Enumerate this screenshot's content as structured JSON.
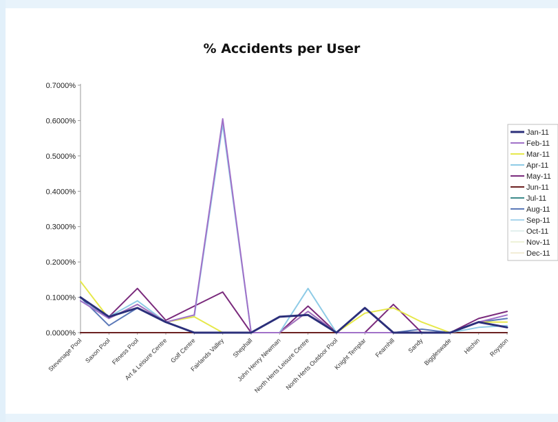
{
  "chart_data": {
    "type": "line",
    "title": "% Accidents per User",
    "xlabel": "",
    "ylabel": "",
    "ylim": [
      0,
      0.007
    ],
    "ytick_labels": [
      "0.0000%",
      "0.1000%",
      "0.2000%",
      "0.3000%",
      "0.4000%",
      "0.5000%",
      "0.6000%",
      "0.7000%"
    ],
    "grid": false,
    "legend_position": "right",
    "categories": [
      "Stevenage Pool",
      "Saxon Pool",
      "Fitness Pool",
      "Art & Leisure Centre",
      "Golf Centre",
      "Fairlands Valley",
      "Shephall",
      "John Henry Newman",
      "North Herts Leisure Centre",
      "North Herts Outdoor Pool",
      "Knight Templar",
      "Fearnhill",
      "Sandy",
      "Biggleswade",
      "Hitchin",
      "Royston"
    ],
    "series": [
      {
        "name": "Jan-11",
        "color": "#2b2f7a",
        "values": [
          0.001,
          0.00045,
          0.0007,
          0.0003,
          0.0,
          0.0,
          0.0,
          0.00045,
          0.0005,
          0.0,
          0.0007,
          0.0,
          0.0,
          0.0,
          0.0003,
          0.00015
        ]
      },
      {
        "name": "Feb-11",
        "color": "#a070c8",
        "values": [
          0.0009,
          0.0004,
          0.0008,
          0.0003,
          0.0005,
          0.00605,
          0.0,
          0.0,
          0.0006,
          0.0,
          0.0,
          0.0,
          0.0,
          0.0,
          0.0003,
          0.0005
        ]
      },
      {
        "name": "Mar-11",
        "color": "#e6e84a",
        "values": [
          0.00145,
          0.0004,
          0.0008,
          0.0003,
          0.00045,
          0.0,
          0.0,
          0.0,
          0.0006,
          0.0,
          0.00055,
          0.0007,
          0.0003,
          0.0,
          0.0003,
          0.0003
        ]
      },
      {
        "name": "Apr-11",
        "color": "#8ecbe6",
        "values": [
          0.0009,
          0.00045,
          0.0009,
          0.0003,
          0.00045,
          0.0059,
          0.0,
          0.0,
          0.00125,
          0.0,
          0.0,
          0.0,
          0.0,
          0.0,
          0.00015,
          0.0002
        ]
      },
      {
        "name": "May-11",
        "color": "#7a2a7c",
        "values": [
          0.001,
          0.00045,
          0.00125,
          0.00035,
          0.00075,
          0.00115,
          0.0,
          0.0,
          0.00075,
          0.0,
          0.0,
          0.0008,
          0.0,
          0.0,
          0.0004,
          0.0006
        ]
      },
      {
        "name": "Jun-11",
        "color": "#6b2020",
        "values": [
          0.0,
          0.0,
          0.0,
          0.0,
          0.0,
          0.0,
          0.0,
          0.0,
          0.0,
          0.0,
          0.0,
          0.0,
          0.0,
          0.0,
          0.0,
          0.0
        ]
      },
      {
        "name": "Jul-11",
        "color": "#3c8a8a",
        "values": [
          0.0,
          0.0,
          0.0,
          0.0,
          0.0,
          0.0,
          0.0,
          0.0,
          0.0,
          0.0,
          0.0,
          0.0,
          0.0,
          0.0,
          0.0,
          0.0
        ]
      },
      {
        "name": "Aug-11",
        "color": "#5a78b8",
        "values": [
          0.001,
          0.0002,
          0.0007,
          0.0003,
          0.0,
          0.0,
          0.0,
          0.0,
          0.0,
          0.0,
          0.0,
          0.0,
          0.0001,
          0.0,
          0.0003,
          0.0004
        ]
      },
      {
        "name": "Sep-11",
        "color": "#a8d4ec",
        "values": [
          0.0,
          0.0,
          0.0,
          0.0,
          0.0,
          0.0,
          0.0,
          0.0,
          0.0,
          0.0,
          0.0,
          0.0,
          0.0,
          0.0,
          0.0,
          0.0
        ]
      },
      {
        "name": "Oct-11",
        "color": "#e2f0ee",
        "values": [
          0.0,
          0.0,
          0.0,
          0.0,
          0.0,
          0.0,
          0.0,
          0.0,
          0.0,
          0.0,
          0.0,
          0.0,
          0.0,
          0.0,
          0.0,
          0.0
        ]
      },
      {
        "name": "Nov-11",
        "color": "#eef2d8",
        "values": [
          0.0,
          0.0,
          0.0,
          0.0,
          0.0,
          0.0,
          0.0,
          0.0,
          0.0,
          0.0,
          0.0,
          0.0,
          0.0,
          0.0,
          0.0,
          0.0
        ]
      },
      {
        "name": "Dec-11",
        "color": "#f2ecd6",
        "values": [
          0.0,
          0.0,
          0.0,
          0.0,
          0.0,
          0.0,
          0.0,
          0.0,
          0.0,
          0.0,
          0.0,
          0.0,
          0.0,
          0.0,
          0.0,
          0.0
        ]
      }
    ]
  }
}
